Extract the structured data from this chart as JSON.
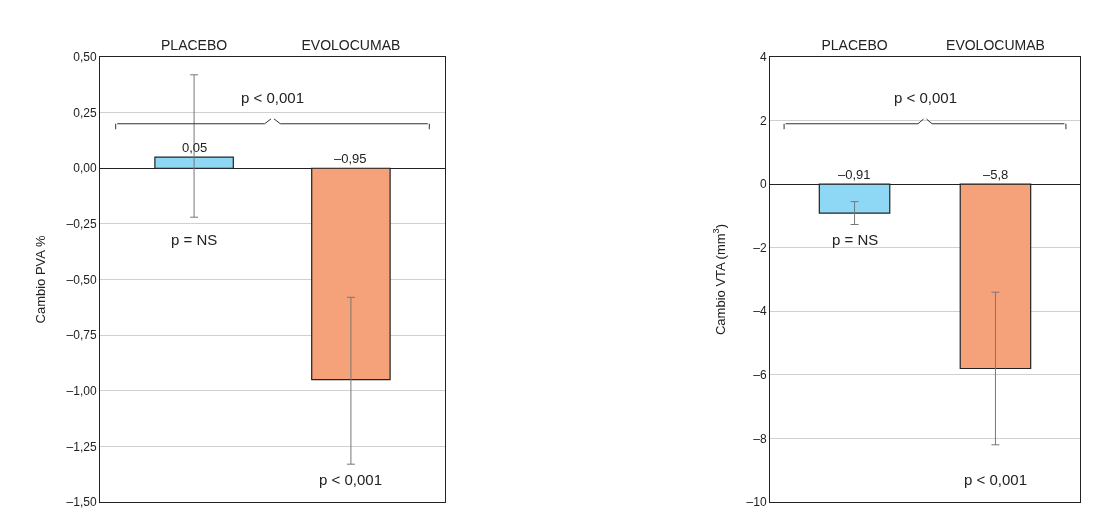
{
  "chart_data": [
    {
      "type": "bar",
      "ylabel": "Cambio PVA %",
      "categories": [
        "PLACEBO",
        "EVOLOCUMAB"
      ],
      "values": [
        0.05,
        -0.95
      ],
      "colors": [
        "#8fd8f5",
        "#f5a27a"
      ],
      "errors": [
        [
          -0.22,
          0.42
        ],
        [
          -1.33,
          -0.58
        ]
      ],
      "value_labels": [
        "0,05",
        "–0,95"
      ],
      "ylim": [
        -1.5,
        0.5
      ],
      "yticks": [
        {
          "value": -1.5,
          "label": "–1,50"
        },
        {
          "value": -1.25,
          "label": "–1,25"
        },
        {
          "value": -1,
          "label": "–1,00"
        },
        {
          "value": -0.75,
          "label": "–0,75"
        },
        {
          "value": -0.5,
          "label": "–0,50"
        },
        {
          "value": -0.25,
          "label": "–0,25"
        },
        {
          "value": 0,
          "label": "0,00"
        },
        {
          "value": 0.25,
          "label": "0,25"
        },
        {
          "value": 0.5,
          "label": "0,50"
        }
      ],
      "grid": "y",
      "annotations": [
        "p < 0,001",
        "p = NS",
        "p < 0,001"
      ]
    },
    {
      "type": "bar",
      "ylabel": "Cambio VTA (mm$^{3}$)",
      "categories": [
        "PLACEBO",
        "EVOLOCUMAB"
      ],
      "values": [
        -0.91,
        -5.8
      ],
      "colors": [
        "#8fd8f5",
        "#f5a27a"
      ],
      "errors": [
        [
          -1.27,
          -0.55
        ],
        [
          -8.2,
          -3.4
        ]
      ],
      "value_labels": [
        "–0,91",
        "–5,8"
      ],
      "ylim": [
        -10,
        4
      ],
      "yticks": [
        {
          "value": -10,
          "label": "–10"
        },
        {
          "value": -8,
          "label": "–8"
        },
        {
          "value": -6,
          "label": "–6"
        },
        {
          "value": -4,
          "label": "–4"
        },
        {
          "value": -2,
          "label": "–2"
        },
        0,
        2,
        4
      ],
      "grid": "y",
      "annotations": [
        "p < 0,001",
        "p = NS",
        "p < 0,001"
      ]
    }
  ]
}
